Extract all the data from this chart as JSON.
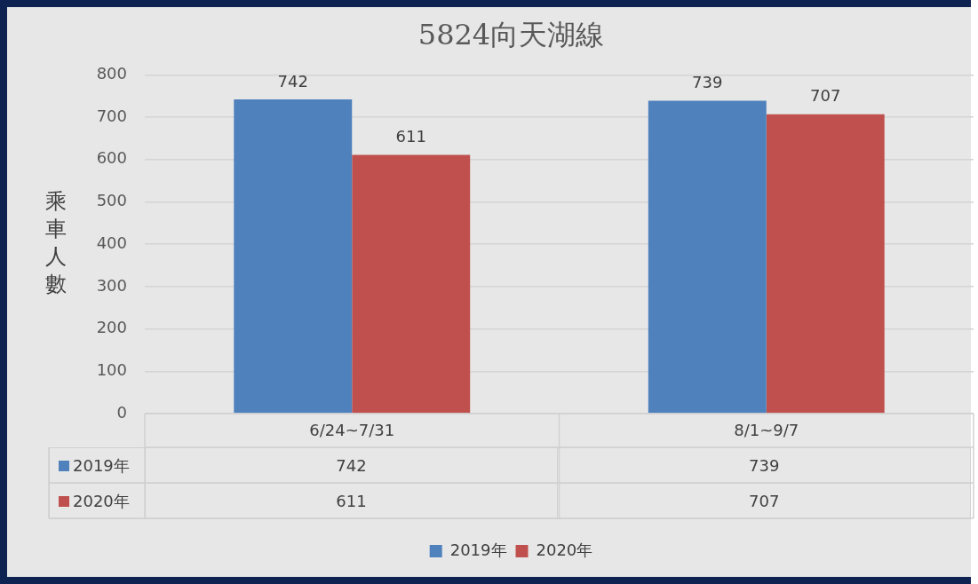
{
  "chart_data": {
    "type": "bar",
    "title": "5824向天湖線",
    "ylabel": "乘車人數",
    "categories": [
      "6/24~7/31",
      "8/1~9/7"
    ],
    "series": [
      {
        "name": "2019年",
        "color": "#4f81bd",
        "values": [
          742,
          739
        ]
      },
      {
        "name": "2020年",
        "color": "#c0504d",
        "values": [
          611,
          707
        ]
      }
    ],
    "ylim": [
      0,
      800
    ],
    "yticks": [
      0,
      100,
      200,
      300,
      400,
      500,
      600,
      700,
      800
    ],
    "annotations": [
      "742",
      "739",
      "611",
      "707"
    ],
    "grid": "y",
    "legend": "bottom",
    "data_labels": true
  }
}
